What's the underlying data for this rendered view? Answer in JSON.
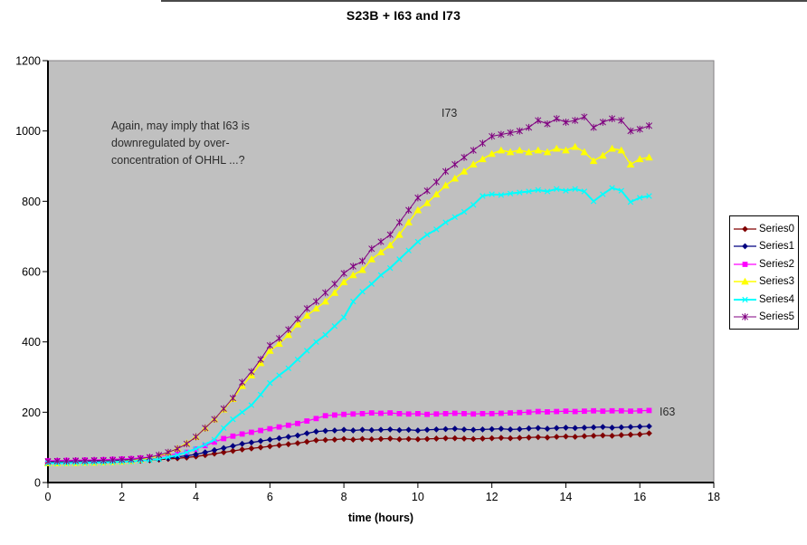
{
  "annotation": {
    "text": "Again, may imply that I63 is\ndownregulated by over-\nconcentration of OHHL ...?"
  },
  "labels": {
    "i73": "I73",
    "i63": "I63"
  },
  "colors": {
    "plot_bg": "#c0c0c0",
    "plot_border": "#848284",
    "axis": "#000000",
    "page_bg": "#ffffff",
    "tick_text": "#000000"
  },
  "chart_data": {
    "type": "line",
    "title": "S23B + I63 and I73",
    "xlabel": "time (hours)",
    "ylabel": "",
    "xlim": [
      0,
      18
    ],
    "ylim": [
      0,
      1200
    ],
    "x_ticks": [
      0,
      2,
      4,
      6,
      8,
      10,
      12,
      14,
      16,
      18
    ],
    "y_ticks": [
      0,
      200,
      400,
      600,
      800,
      1000,
      1200
    ],
    "grid": false,
    "legend_position": "right",
    "x": [
      0,
      0.25,
      0.5,
      0.75,
      1,
      1.25,
      1.5,
      1.75,
      2,
      2.25,
      2.5,
      2.75,
      3,
      3.25,
      3.5,
      3.75,
      4,
      4.25,
      4.5,
      4.75,
      5,
      5.25,
      5.5,
      5.75,
      6,
      6.25,
      6.5,
      6.75,
      7,
      7.25,
      7.5,
      7.75,
      8,
      8.25,
      8.5,
      8.75,
      9,
      9.25,
      9.5,
      9.75,
      10,
      10.25,
      10.5,
      10.75,
      11,
      11.25,
      11.5,
      11.75,
      12,
      12.25,
      12.5,
      12.75,
      13,
      13.25,
      13.5,
      13.75,
      14,
      14.25,
      14.5,
      14.75,
      15,
      15.25,
      15.5,
      15.75,
      16,
      16.25
    ],
    "series": [
      {
        "name": "Series0",
        "color": "#800000",
        "marker": "diamond",
        "line_width": 1.25,
        "values": [
          57,
          57,
          57,
          58,
          58,
          58,
          59,
          59,
          60,
          61,
          62,
          63,
          65,
          67,
          69,
          71,
          74,
          78,
          82,
          86,
          90,
          94,
          97,
          100,
          103,
          106,
          109,
          112,
          116,
          120,
          121,
          122,
          124,
          122,
          124,
          123,
          124,
          125,
          123,
          124,
          123,
          124,
          125,
          126,
          126,
          125,
          124,
          125,
          126,
          127,
          126,
          127,
          128,
          129,
          128,
          130,
          131,
          130,
          132,
          133,
          134,
          133,
          135,
          136,
          137,
          140
        ]
      },
      {
        "name": "Series1",
        "color": "#000080",
        "marker": "diamond",
        "line_width": 1.25,
        "values": [
          58,
          58,
          58,
          59,
          59,
          60,
          60,
          61,
          62,
          63,
          64,
          66,
          68,
          70,
          73,
          76,
          80,
          86,
          92,
          98,
          104,
          110,
          114,
          118,
          122,
          126,
          130,
          134,
          140,
          145,
          147,
          148,
          150,
          148,
          150,
          149,
          150,
          151,
          149,
          150,
          148,
          150,
          151,
          152,
          153,
          151,
          150,
          151,
          152,
          153,
          151,
          152,
          154,
          155,
          153,
          155,
          156,
          155,
          156,
          157,
          158,
          156,
          157,
          158,
          159,
          160
        ]
      },
      {
        "name": "Series2",
        "color": "#ff00ff",
        "marker": "square",
        "line_width": 1.25,
        "values": [
          62,
          62,
          63,
          63,
          64,
          64,
          65,
          66,
          67,
          68,
          70,
          72,
          75,
          78,
          82,
          86,
          95,
          105,
          115,
          125,
          132,
          138,
          143,
          148,
          153,
          158,
          163,
          168,
          175,
          182,
          190,
          192,
          194,
          195,
          196,
          198,
          197,
          198,
          196,
          195,
          196,
          194,
          195,
          196,
          197,
          196,
          195,
          196,
          196,
          197,
          198,
          199,
          200,
          202,
          201,
          202,
          203,
          202,
          203,
          204,
          203,
          204,
          204,
          203,
          204,
          205
        ]
      },
      {
        "name": "Series3",
        "color": "#ffff00",
        "marker": "triangle",
        "line_width": 1.5,
        "values": [
          55,
          55,
          56,
          56,
          57,
          57,
          58,
          59,
          60,
          62,
          65,
          70,
          76,
          85,
          97,
          112,
          130,
          155,
          180,
          208,
          238,
          275,
          305,
          340,
          375,
          395,
          420,
          450,
          475,
          495,
          515,
          540,
          570,
          590,
          605,
          635,
          655,
          675,
          705,
          740,
          775,
          795,
          820,
          845,
          865,
          885,
          905,
          920,
          935,
          945,
          940,
          945,
          940,
          945,
          940,
          950,
          945,
          955,
          940,
          915,
          930,
          950,
          945,
          905,
          920,
          925
        ]
      },
      {
        "name": "Series4",
        "color": "#00ffff",
        "marker": "x",
        "line_width": 2,
        "values": [
          55,
          55,
          55,
          56,
          56,
          57,
          57,
          58,
          59,
          60,
          62,
          64,
          67,
          72,
          78,
          86,
          96,
          108,
          122,
          155,
          180,
          200,
          220,
          250,
          283,
          305,
          325,
          350,
          375,
          400,
          420,
          445,
          470,
          515,
          543,
          565,
          590,
          610,
          635,
          660,
          685,
          705,
          720,
          740,
          755,
          770,
          790,
          815,
          820,
          818,
          822,
          825,
          828,
          832,
          828,
          835,
          830,
          835,
          828,
          800,
          820,
          838,
          830,
          798,
          810,
          815
        ]
      },
      {
        "name": "Series5",
        "color": "#800080",
        "marker": "star",
        "line_width": 1,
        "values": [
          60,
          61,
          61,
          62,
          62,
          63,
          63,
          64,
          65,
          66,
          68,
          72,
          78,
          86,
          96,
          110,
          130,
          155,
          180,
          210,
          240,
          285,
          315,
          350,
          390,
          410,
          435,
          465,
          495,
          515,
          540,
          565,
          595,
          615,
          630,
          665,
          685,
          705,
          740,
          775,
          810,
          830,
          855,
          885,
          905,
          925,
          945,
          965,
          985,
          990,
          995,
          1000,
          1010,
          1030,
          1020,
          1035,
          1025,
          1030,
          1040,
          1010,
          1025,
          1035,
          1030,
          1000,
          1005,
          1015
        ]
      }
    ]
  }
}
